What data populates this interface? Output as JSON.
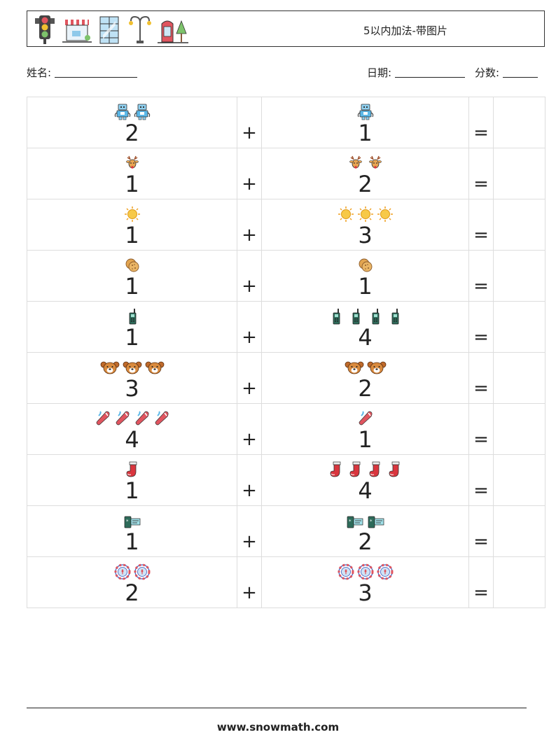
{
  "header": {
    "title": "5以内加法-带图片",
    "icons": [
      "traffic-light-icon",
      "street-shop-icon",
      "glass-building-icon",
      "street-lamp-icon",
      "phone-booth-tree-icon"
    ]
  },
  "meta": {
    "name_label": "姓名:",
    "date_label": "日期:",
    "score_label": "分数:"
  },
  "problems": [
    {
      "a": 2,
      "b": 1,
      "icon": "robot-icon",
      "a_text": "2",
      "b_text": "1"
    },
    {
      "a": 1,
      "b": 2,
      "icon": "reindeer-icon",
      "a_text": "1",
      "b_text": "2"
    },
    {
      "a": 1,
      "b": 3,
      "icon": "sun-icon",
      "a_text": "1",
      "b_text": "3"
    },
    {
      "a": 1,
      "b": 1,
      "icon": "cookie-icon",
      "a_text": "1",
      "b_text": "1"
    },
    {
      "a": 1,
      "b": 4,
      "icon": "walkie-talkie-icon",
      "a_text": "1",
      "b_text": "4"
    },
    {
      "a": 3,
      "b": 2,
      "icon": "bear-face-icon",
      "a_text": "3",
      "b_text": "2"
    },
    {
      "a": 4,
      "b": 1,
      "icon": "juggling-club-icon",
      "a_text": "4",
      "b_text": "1"
    },
    {
      "a": 1,
      "b": 4,
      "icon": "stocking-icon",
      "a_text": "1",
      "b_text": "4"
    },
    {
      "a": 1,
      "b": 2,
      "icon": "ticket-icon",
      "a_text": "1",
      "b_text": "2"
    },
    {
      "a": 2,
      "b": 3,
      "icon": "poker-chip-icon",
      "a_text": "2",
      "b_text": "3"
    }
  ],
  "plus_sign": "+",
  "equals_sign": "=",
  "footer": {
    "url": "www.snowmath.com"
  }
}
